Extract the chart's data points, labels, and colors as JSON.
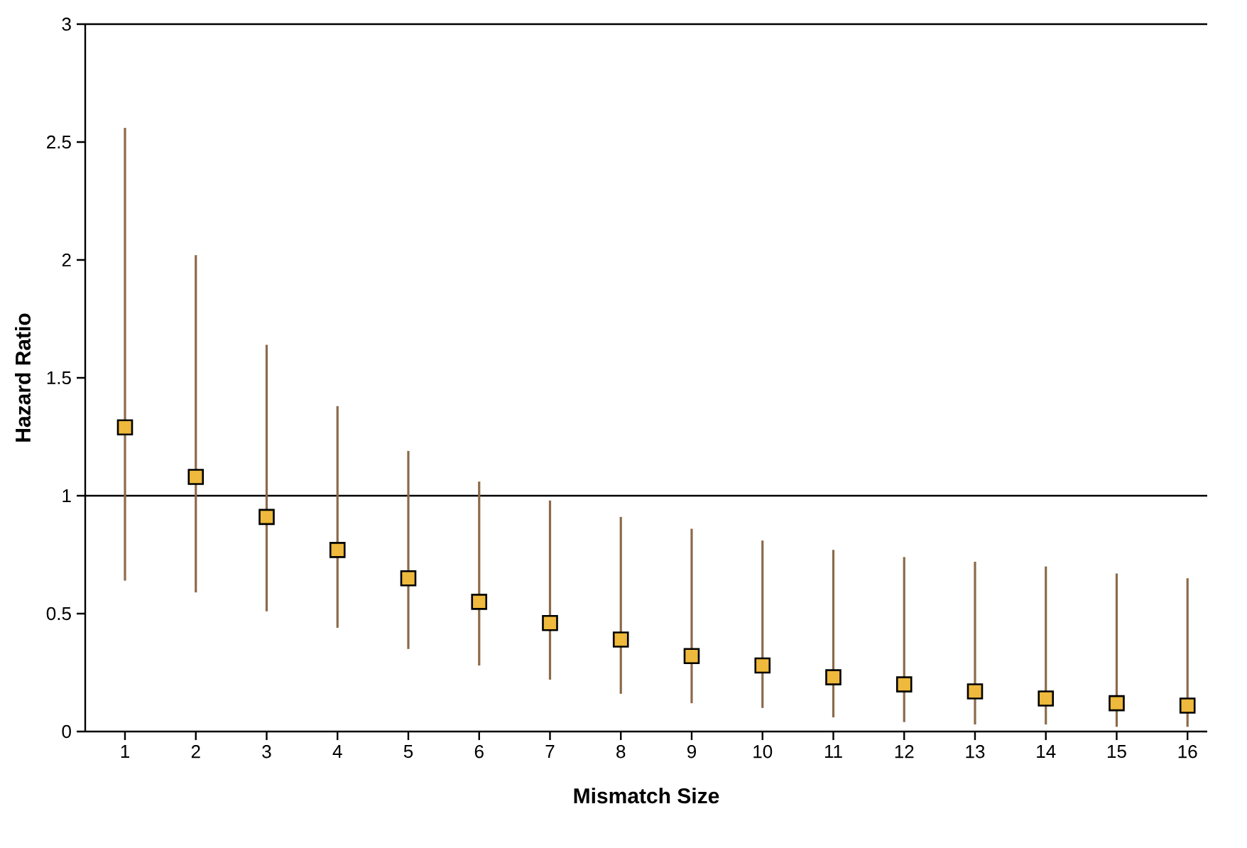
{
  "chart_data": {
    "type": "scatter",
    "xlabel": "Mismatch Size",
    "ylabel": "Hazard Ratio",
    "categories": [
      "1",
      "2",
      "3",
      "4",
      "5",
      "6",
      "7",
      "8",
      "9",
      "10",
      "11",
      "12",
      "13",
      "14",
      "15",
      "16"
    ],
    "values": [
      1.29,
      1.08,
      0.91,
      0.77,
      0.65,
      0.55,
      0.46,
      0.39,
      0.32,
      0.28,
      0.23,
      0.2,
      0.17,
      0.14,
      0.12,
      0.11
    ],
    "errors": [
      [
        0.64,
        2.56
      ],
      [
        0.59,
        2.02
      ],
      [
        0.51,
        1.64
      ],
      [
        0.44,
        1.38
      ],
      [
        0.35,
        1.19
      ],
      [
        0.28,
        1.06
      ],
      [
        0.22,
        0.98
      ],
      [
        0.16,
        0.91
      ],
      [
        0.12,
        0.86
      ],
      [
        0.1,
        0.81
      ],
      [
        0.06,
        0.77
      ],
      [
        0.04,
        0.74
      ],
      [
        0.03,
        0.72
      ],
      [
        0.03,
        0.7
      ],
      [
        0.02,
        0.67
      ],
      [
        0.02,
        0.65
      ]
    ],
    "color": "#eeb93c",
    "marker": "square",
    "ylim": [
      0,
      3
    ],
    "yticks": [
      0,
      0.5,
      1,
      1.5,
      2,
      2.5,
      3
    ],
    "ref_lines": [
      {
        "axis": "y",
        "value": 1
      }
    ]
  }
}
